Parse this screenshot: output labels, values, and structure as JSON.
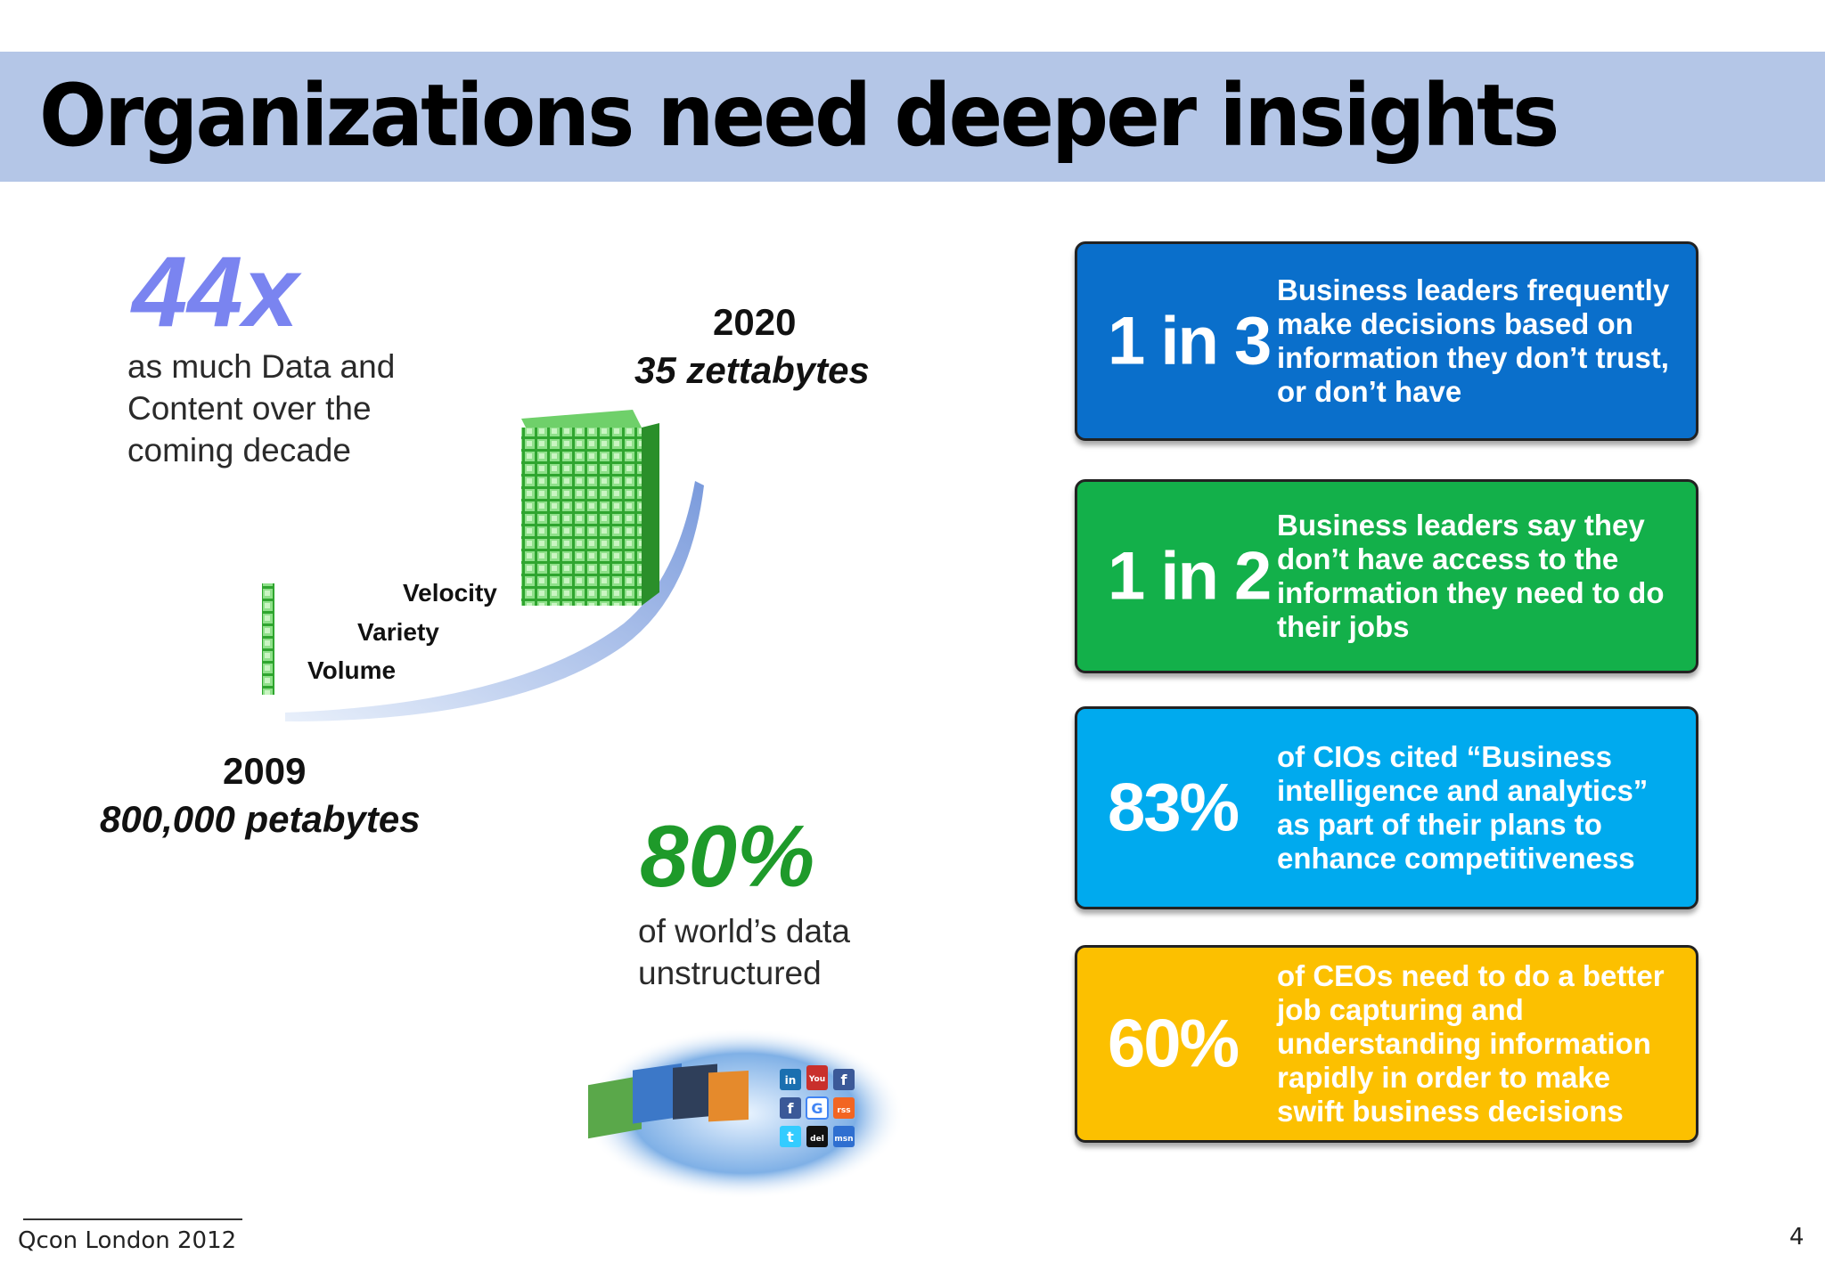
{
  "title": "Organizations need deeper insights",
  "left": {
    "multiplier": "44x",
    "multiplier_desc": [
      "as much Data and",
      "Content over the",
      "coming decade"
    ],
    "year_2020": "2020",
    "amount_2020": "35 zettabytes",
    "year_2009": "2009",
    "amount_2009": "800,000 petabytes",
    "labels": [
      "Velocity",
      "Variety",
      "Volume"
    ],
    "percent": "80%",
    "percent_desc": [
      "of world’s data",
      "unstructured"
    ]
  },
  "cards": [
    {
      "stat": "1 in 3",
      "text": "Business leaders frequently make decisions based on information they don’t trust, or don’t have",
      "color": "#0a6fcb"
    },
    {
      "stat": "1 in 2",
      "text": "Business leaders say they don’t have access to the information they need to do their jobs",
      "color": "#13b04a"
    },
    {
      "stat": "83%",
      "text": "of CIOs cited “Business intelligence and analytics” as part of their plans to enhance competitiveness",
      "color": "#00aaee"
    },
    {
      "stat": "60%",
      "text": "of CEOs need to do a better job capturing and understanding information rapidly in order to make swift business decisions",
      "color": "#fcc000"
    }
  ],
  "globe_icons": [
    "in",
    "You",
    "f",
    "f",
    "G",
    "rss",
    "t",
    "del",
    "msn"
  ],
  "footer": "Qcon London 2012",
  "page_number": "4"
}
